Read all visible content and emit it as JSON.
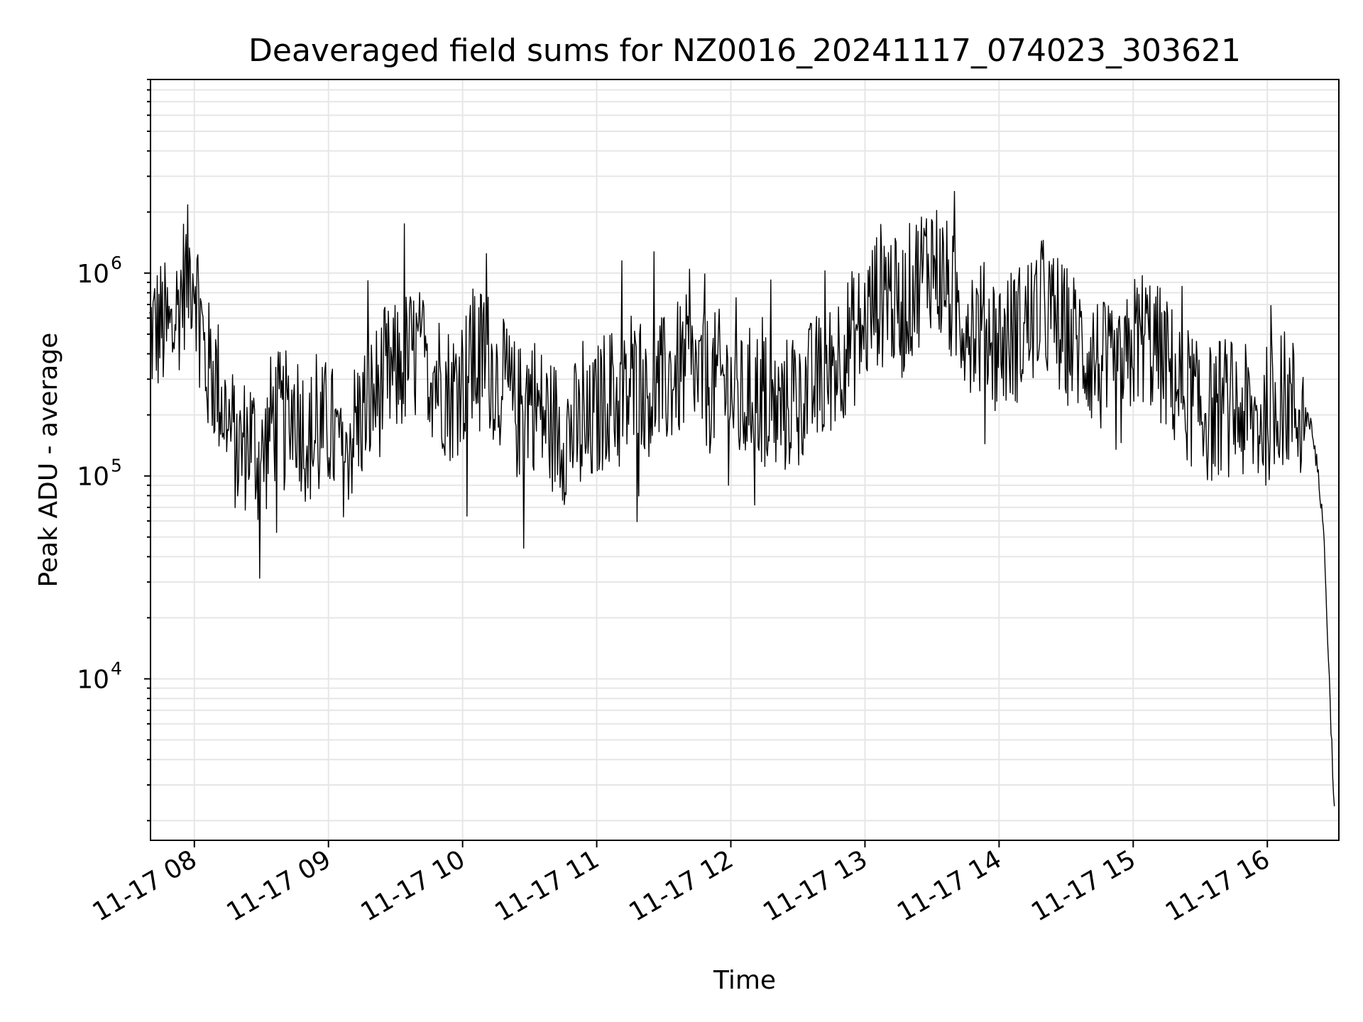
{
  "chart_data": {
    "type": "line",
    "title": "Deaveraged field sums for NZ0016_20241117_074023_303621",
    "xlabel": "Time",
    "ylabel": "Peak ADU - average",
    "xscale": "time",
    "yscale": "log",
    "xlim": [
      "2024-11-17T07:40:23",
      "2024-11-17T16:32"
    ],
    "ylim": [
      1600,
      9000000
    ],
    "x_ticks": [
      {
        "value": "2024-11-17T08:00",
        "label": "11-17 08"
      },
      {
        "value": "2024-11-17T09:00",
        "label": "11-17 09"
      },
      {
        "value": "2024-11-17T10:00",
        "label": "11-17 10"
      },
      {
        "value": "2024-11-17T11:00",
        "label": "11-17 11"
      },
      {
        "value": "2024-11-17T12:00",
        "label": "11-17 12"
      },
      {
        "value": "2024-11-17T13:00",
        "label": "11-17 13"
      },
      {
        "value": "2024-11-17T14:00",
        "label": "11-17 14"
      },
      {
        "value": "2024-11-17T15:00",
        "label": "11-17 15"
      },
      {
        "value": "2024-11-17T16:00",
        "label": "11-17 16"
      }
    ],
    "y_ticks": [
      {
        "value": 10000,
        "base": "10",
        "exp": "4"
      },
      {
        "value": 100000,
        "base": "10",
        "exp": "5"
      },
      {
        "value": 1000000,
        "base": "10",
        "exp": "6"
      }
    ],
    "grid": true,
    "minor_grid": true,
    "line_color": "#000000",
    "grid_color": "#e6e6e6",
    "series": [
      {
        "x": [
          "2024-11-17T07:40",
          "2024-11-17T07:45",
          "2024-11-17T07:50",
          "2024-11-17T07:55",
          "2024-11-17T08:00",
          "2024-11-17T08:05",
          "2024-11-17T08:10",
          "2024-11-17T08:15",
          "2024-11-17T08:20",
          "2024-11-17T08:25",
          "2024-11-17T08:30",
          "2024-11-17T08:35",
          "2024-11-17T08:40",
          "2024-11-17T08:45",
          "2024-11-17T08:50",
          "2024-11-17T08:55",
          "2024-11-17T09:00",
          "2024-11-17T09:05",
          "2024-11-17T09:10",
          "2024-11-17T09:15",
          "2024-11-17T09:20",
          "2024-11-17T09:25",
          "2024-11-17T09:30",
          "2024-11-17T09:35",
          "2024-11-17T09:40",
          "2024-11-17T09:45",
          "2024-11-17T09:50",
          "2024-11-17T09:55",
          "2024-11-17T10:00",
          "2024-11-17T10:05",
          "2024-11-17T10:10",
          "2024-11-17T10:15",
          "2024-11-17T10:20",
          "2024-11-17T10:25",
          "2024-11-17T10:30",
          "2024-11-17T10:35",
          "2024-11-17T10:40",
          "2024-11-17T10:45",
          "2024-11-17T10:50",
          "2024-11-17T10:55",
          "2024-11-17T11:00",
          "2024-11-17T11:05",
          "2024-11-17T11:10",
          "2024-11-17T11:15",
          "2024-11-17T11:20",
          "2024-11-17T11:25",
          "2024-11-17T11:30",
          "2024-11-17T11:35",
          "2024-11-17T11:40",
          "2024-11-17T11:45",
          "2024-11-17T11:50",
          "2024-11-17T11:55",
          "2024-11-17T12:00",
          "2024-11-17T12:05",
          "2024-11-17T12:10",
          "2024-11-17T12:15",
          "2024-11-17T12:20",
          "2024-11-17T12:25",
          "2024-11-17T12:30",
          "2024-11-17T12:35",
          "2024-11-17T12:40",
          "2024-11-17T12:45",
          "2024-11-17T12:50",
          "2024-11-17T12:55",
          "2024-11-17T13:00",
          "2024-11-17T13:05",
          "2024-11-17T13:10",
          "2024-11-17T13:15",
          "2024-11-17T13:20",
          "2024-11-17T13:25",
          "2024-11-17T13:30",
          "2024-11-17T13:35",
          "2024-11-17T13:40",
          "2024-11-17T13:45",
          "2024-11-17T13:50",
          "2024-11-17T13:55",
          "2024-11-17T14:00",
          "2024-11-17T14:05",
          "2024-11-17T14:10",
          "2024-11-17T14:15",
          "2024-11-17T14:20",
          "2024-11-17T14:25",
          "2024-11-17T14:30",
          "2024-11-17T14:35",
          "2024-11-17T14:40",
          "2024-11-17T14:45",
          "2024-11-17T14:50",
          "2024-11-17T14:55",
          "2024-11-17T15:00",
          "2024-11-17T15:05",
          "2024-11-17T15:10",
          "2024-11-17T15:15",
          "2024-11-17T15:20",
          "2024-11-17T15:25",
          "2024-11-17T15:30",
          "2024-11-17T15:35",
          "2024-11-17T15:40",
          "2024-11-17T15:45",
          "2024-11-17T15:50",
          "2024-11-17T15:55",
          "2024-11-17T16:00",
          "2024-11-17T16:05",
          "2024-11-17T16:10",
          "2024-11-17T16:15",
          "2024-11-17T16:20",
          "2024-11-17T16:25",
          "2024-11-17T16:30"
        ],
        "y": [
          500000,
          550000,
          480000,
          900000,
          1100000,
          350000,
          300000,
          180000,
          130000,
          160000,
          110000,
          200000,
          180000,
          220000,
          160000,
          150000,
          180000,
          130000,
          160000,
          200000,
          240000,
          300000,
          320000,
          380000,
          400000,
          350000,
          300000,
          250000,
          300000,
          350000,
          420000,
          300000,
          250000,
          200000,
          260000,
          200000,
          180000,
          160000,
          170000,
          150000,
          200000,
          260000,
          220000,
          250000,
          300000,
          260000,
          280000,
          320000,
          350000,
          300000,
          280000,
          300000,
          260000,
          220000,
          260000,
          240000,
          200000,
          220000,
          280000,
          260000,
          300000,
          350000,
          420000,
          480000,
          550000,
          750000,
          900000,
          600000,
          800000,
          1000000,
          1200000,
          900000,
          700000,
          600000,
          550000,
          500000,
          450000,
          480000,
          520000,
          600000,
          700000,
          550000,
          500000,
          450000,
          400000,
          350000,
          300000,
          280000,
          450000,
          500000,
          420000,
          350000,
          280000,
          250000,
          220000,
          200000,
          230000,
          210000,
          200000,
          180000,
          200000,
          250000,
          230000,
          200000,
          180000,
          60000,
          2200
        ]
      }
    ]
  }
}
